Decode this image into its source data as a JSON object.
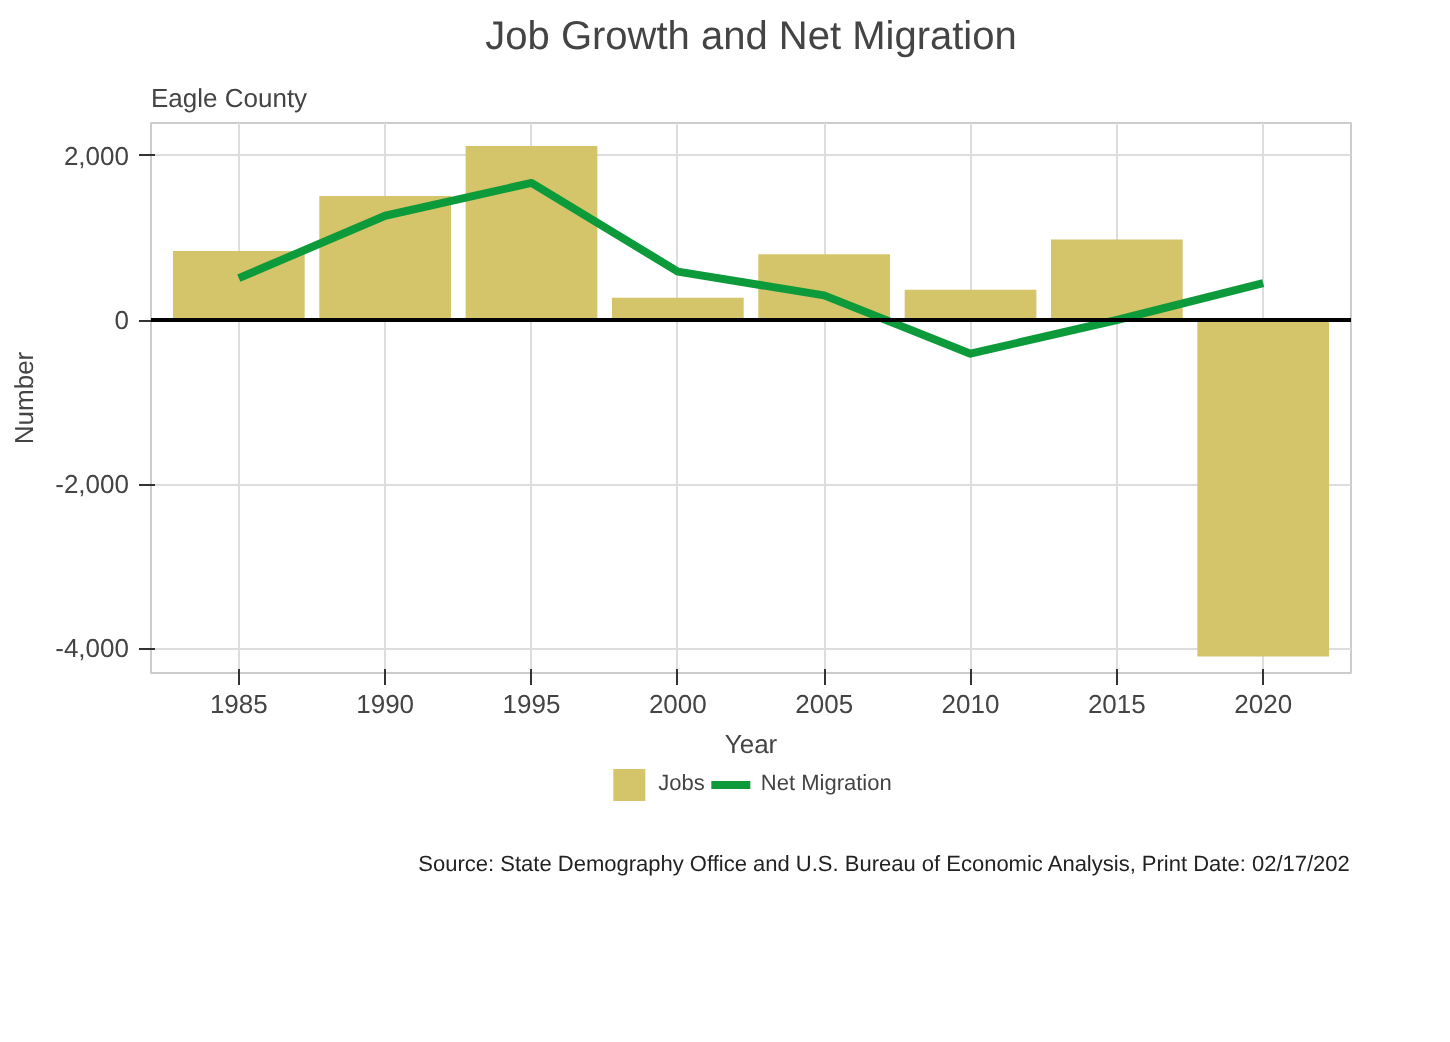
{
  "chart_data": {
    "type": "bar",
    "title": "Job Growth and Net Migration",
    "subtitle": "Eagle County",
    "xlabel": "Year",
    "ylabel": "Number",
    "x": [
      1985,
      1990,
      1995,
      2000,
      2005,
      2010,
      2015,
      2020
    ],
    "series": [
      {
        "name": "Jobs",
        "color": "#d4c46a",
        "values": [
          840,
          1510,
          2120,
          270,
          800,
          370,
          980,
          -4100
        ]
      },
      {
        "name": "Net Migration",
        "type": "line",
        "color": "#0d9a3a",
        "values": [
          510,
          1270,
          1670,
          590,
          300,
          -410,
          0,
          450
        ]
      }
    ],
    "xlim": [
      1982,
      2023
    ],
    "ylim": [
      -4300,
      2400
    ],
    "xticks": [
      1985,
      1990,
      1995,
      2000,
      2005,
      2010,
      2015,
      2020
    ],
    "yticks": [
      {
        "value": -4000,
        "label": "-4,000"
      },
      {
        "value": -2000,
        "label": "-2,000"
      },
      0,
      {
        "value": 2000,
        "label": "2,000"
      }
    ],
    "ref_lines": [
      {
        "axis": "y",
        "value": 0,
        "color": "#000000"
      }
    ],
    "grid": true,
    "legend": "bottom",
    "annotations": [
      "Source: State Demography Office and U.S. Bureau of Economic Analysis, Print Date: 02/17/202"
    ]
  }
}
